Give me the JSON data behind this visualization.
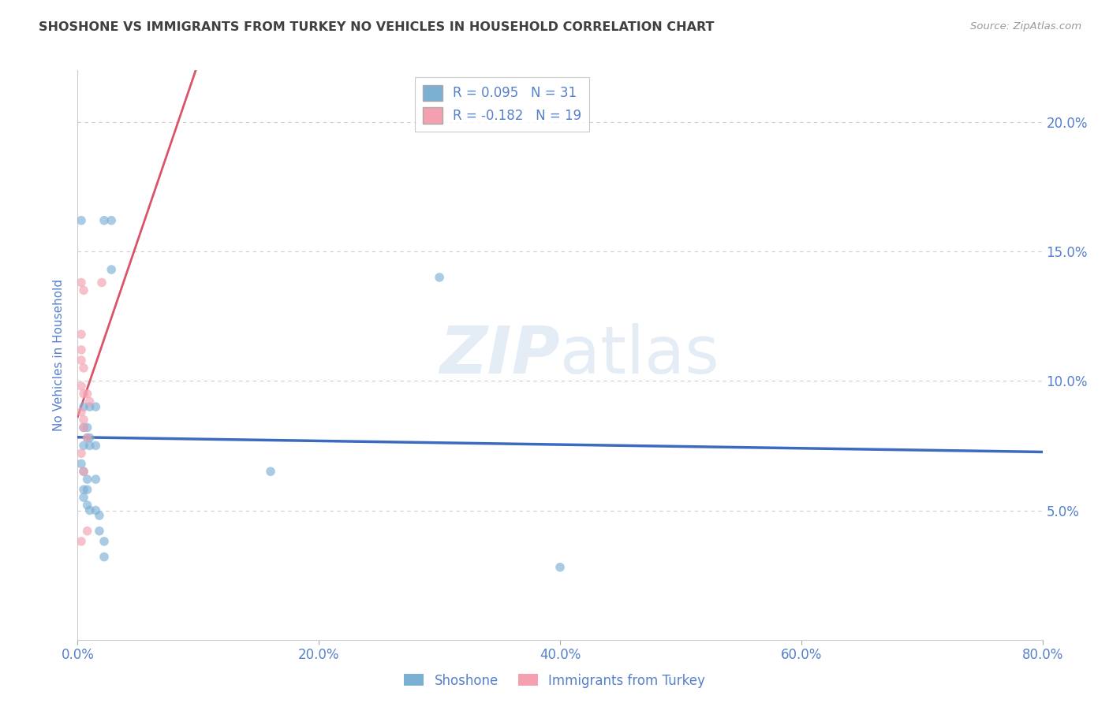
{
  "title": "SHOSHONE VS IMMIGRANTS FROM TURKEY NO VEHICLES IN HOUSEHOLD CORRELATION CHART",
  "source": "Source: ZipAtlas.com",
  "ylabel": "No Vehicles in Household",
  "xlim": [
    0.0,
    0.8
  ],
  "ylim": [
    0.0,
    0.22
  ],
  "x_ticks": [
    0.0,
    0.2,
    0.4,
    0.6,
    0.8
  ],
  "y_ticks": [
    0.05,
    0.1,
    0.15,
    0.2
  ],
  "legend_line1": "R = 0.095   N = 31",
  "legend_line2": "R = -0.182   N = 19",
  "shoshone_scatter": [
    [
      0.003,
      0.162
    ],
    [
      0.022,
      0.162
    ],
    [
      0.028,
      0.162
    ],
    [
      0.028,
      0.143
    ],
    [
      0.3,
      0.14
    ],
    [
      0.005,
      0.09
    ],
    [
      0.01,
      0.09
    ],
    [
      0.015,
      0.09
    ],
    [
      0.005,
      0.082
    ],
    [
      0.008,
      0.082
    ],
    [
      0.008,
      0.078
    ],
    [
      0.01,
      0.078
    ],
    [
      0.005,
      0.075
    ],
    [
      0.01,
      0.075
    ],
    [
      0.015,
      0.075
    ],
    [
      0.003,
      0.068
    ],
    [
      0.005,
      0.065
    ],
    [
      0.008,
      0.062
    ],
    [
      0.015,
      0.062
    ],
    [
      0.005,
      0.058
    ],
    [
      0.008,
      0.058
    ],
    [
      0.005,
      0.055
    ],
    [
      0.008,
      0.052
    ],
    [
      0.01,
      0.05
    ],
    [
      0.015,
      0.05
    ],
    [
      0.018,
      0.048
    ],
    [
      0.018,
      0.042
    ],
    [
      0.022,
      0.038
    ],
    [
      0.022,
      0.032
    ],
    [
      0.4,
      0.028
    ],
    [
      0.16,
      0.065
    ]
  ],
  "turkey_scatter": [
    [
      0.003,
      0.138
    ],
    [
      0.005,
      0.135
    ],
    [
      0.02,
      0.138
    ],
    [
      0.003,
      0.118
    ],
    [
      0.003,
      0.112
    ],
    [
      0.003,
      0.108
    ],
    [
      0.005,
      0.105
    ],
    [
      0.003,
      0.098
    ],
    [
      0.005,
      0.095
    ],
    [
      0.008,
      0.095
    ],
    [
      0.01,
      0.092
    ],
    [
      0.003,
      0.088
    ],
    [
      0.005,
      0.085
    ],
    [
      0.005,
      0.082
    ],
    [
      0.008,
      0.078
    ],
    [
      0.003,
      0.072
    ],
    [
      0.005,
      0.065
    ],
    [
      0.008,
      0.042
    ],
    [
      0.003,
      0.038
    ]
  ],
  "shoshone_color": "#7bafd4",
  "turkey_color": "#f4a0b0",
  "shoshone_line_color": "#3a6bbf",
  "turkey_line_solid_color": "#d9546a",
  "turkey_line_dash_color": "#f4a0b0",
  "bg_color": "#ffffff",
  "grid_color": "#cccccc",
  "title_color": "#404040",
  "axis_tick_color": "#5580cc",
  "watermark_color": "#c5d8ed",
  "marker_size": 70
}
